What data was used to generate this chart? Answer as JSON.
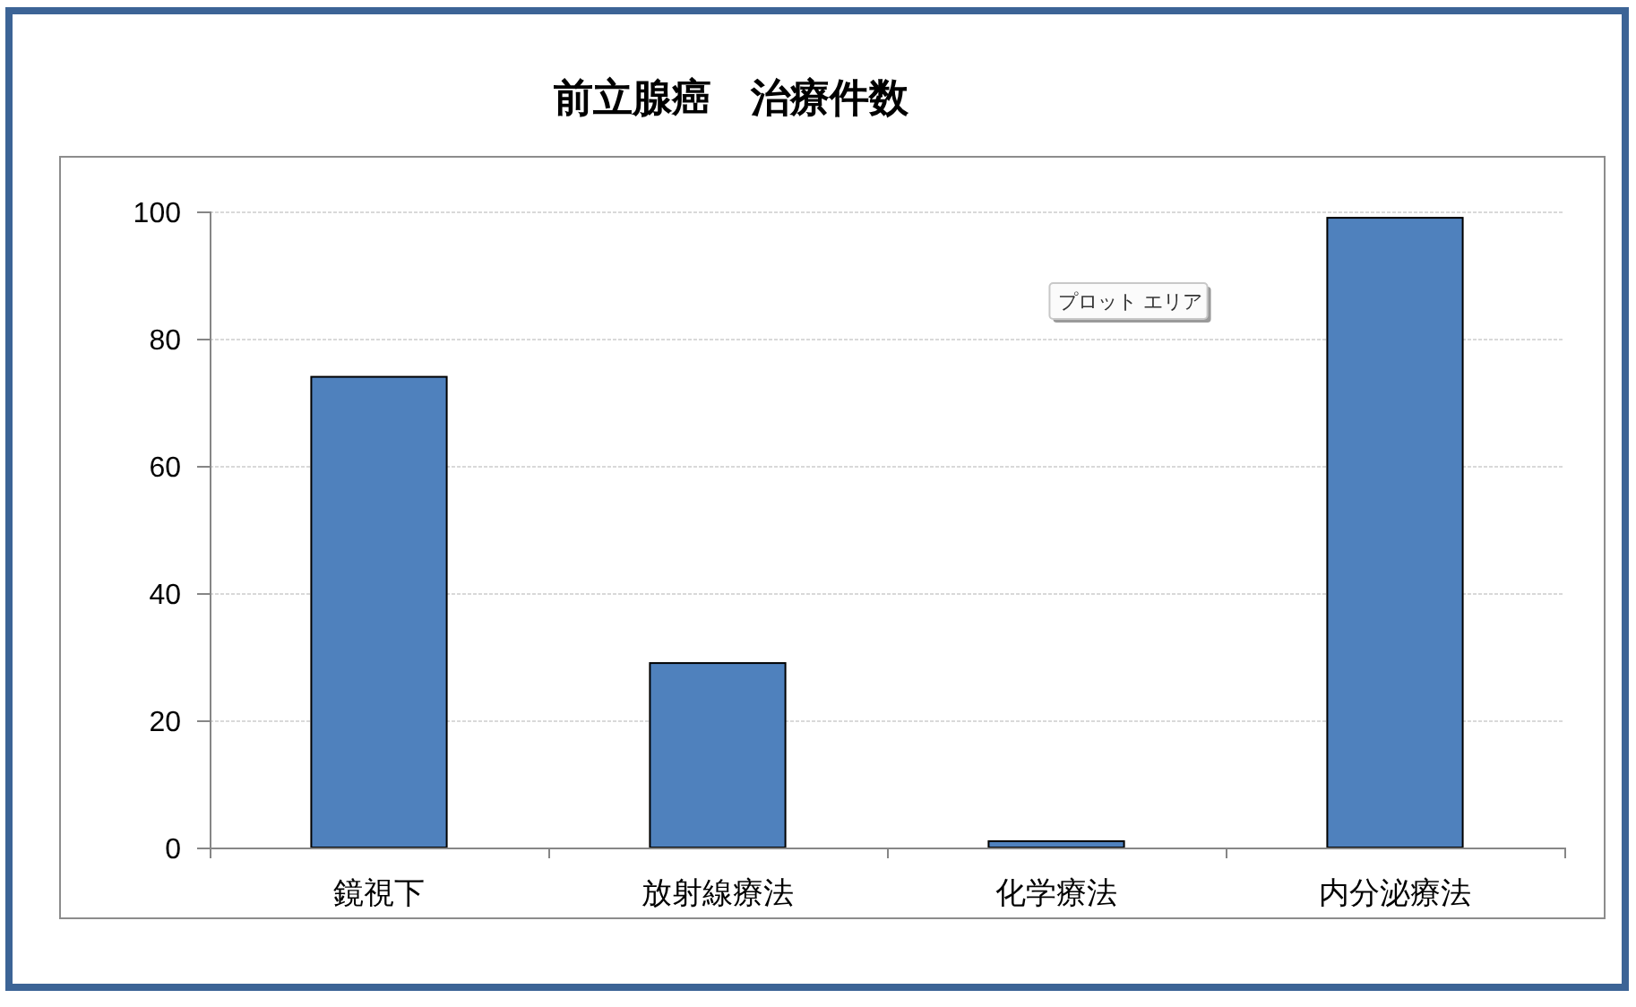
{
  "chart_data": {
    "type": "bar",
    "title": "前立腺癌　治療件数",
    "categories": [
      "鏡視下",
      "放射線療法",
      "化学療法",
      "内分泌療法"
    ],
    "values": [
      74,
      29,
      1,
      99
    ],
    "color": "#4f81bd",
    "ylim": [
      0,
      100
    ],
    "yticks": [
      0,
      20,
      40,
      60,
      80,
      100
    ],
    "grid": "y",
    "annotations": [
      "プロット エリア"
    ]
  }
}
